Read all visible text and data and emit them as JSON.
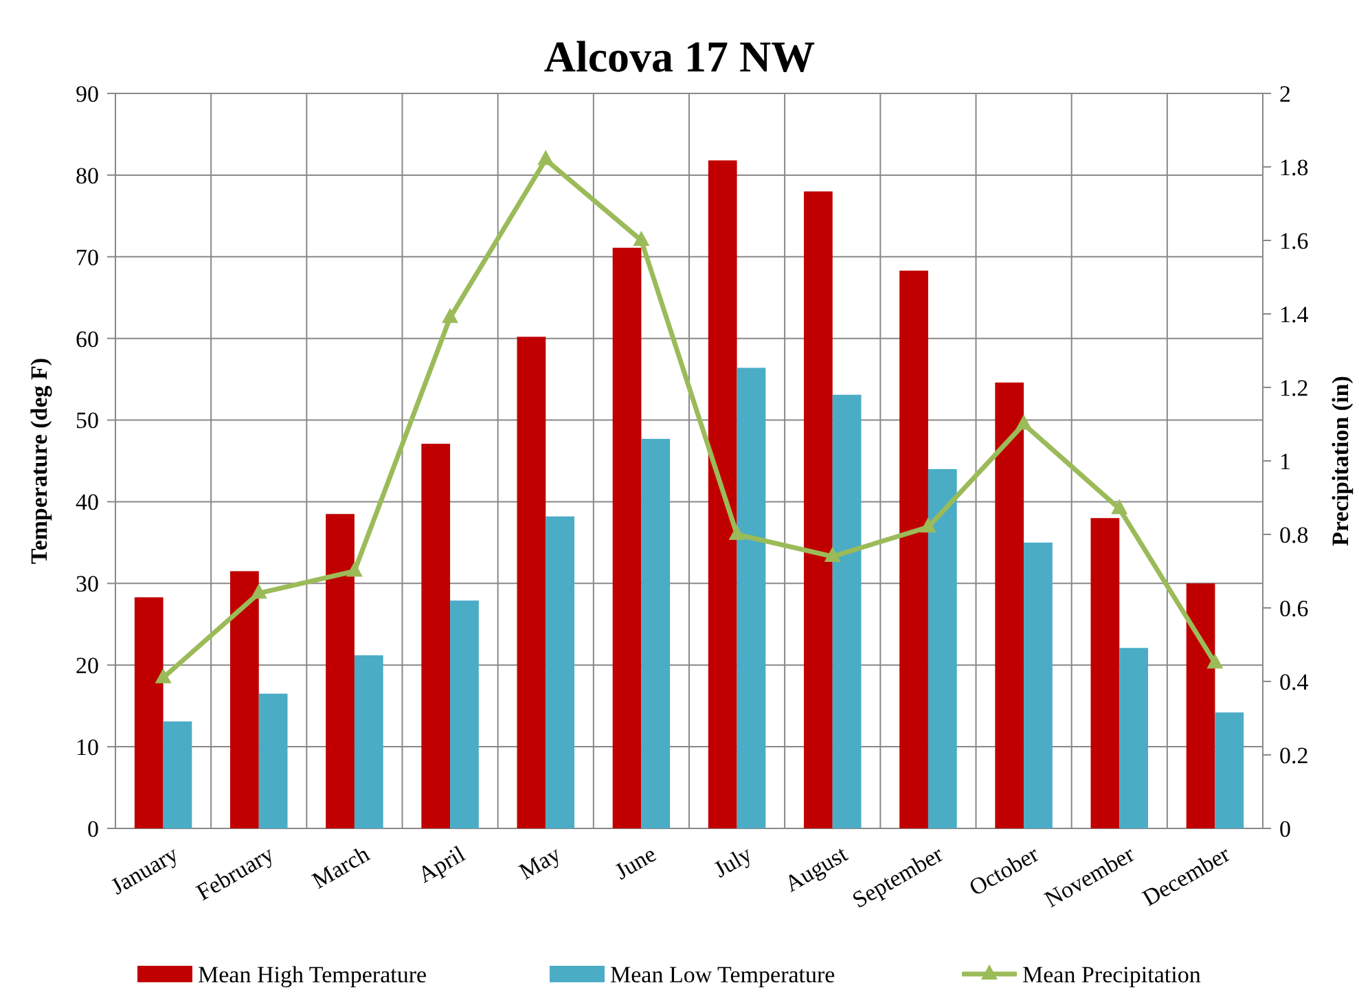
{
  "chart_data": {
    "type": "bar",
    "title": "Alcova 17 NW",
    "ylabel": "Temperature (deg F)",
    "y2label": "Precipitation (in)",
    "categories": [
      "January",
      "February",
      "March",
      "April",
      "May",
      "June",
      "July",
      "August",
      "September",
      "October",
      "November",
      "December"
    ],
    "series": [
      {
        "name": "Mean High Temperature",
        "color": "#c00000",
        "values": [
          28.3,
          31.5,
          38.5,
          47.1,
          60.2,
          71.1,
          81.8,
          78,
          68.3,
          54.6,
          38,
          30
        ]
      },
      {
        "name": "Mean Low Temperature",
        "color": "#4bacc6",
        "values": [
          13.1,
          16.5,
          21.2,
          27.9,
          38.2,
          47.7,
          56.4,
          53.1,
          44,
          35,
          22.1,
          14.2
        ]
      },
      {
        "name": "Mean Precipitation",
        "color": "#9bbb59",
        "type": "line",
        "axis": "y2",
        "marker": "triangle",
        "values": [
          0.41,
          0.64,
          0.7,
          1.39,
          1.82,
          1.6,
          0.8,
          0.74,
          0.82,
          1.1,
          0.87,
          0.45
        ]
      }
    ],
    "ylim": [
      0,
      90
    ],
    "yticks": [
      0,
      10,
      20,
      30,
      40,
      50,
      60,
      70,
      80,
      90
    ],
    "y2lim": [
      0,
      2
    ],
    "y2ticks": [
      0,
      0.2,
      0.4,
      0.6,
      0.8,
      1,
      1.2,
      1.4,
      1.6,
      1.8,
      2
    ],
    "grid": true,
    "legend": "bottom"
  }
}
